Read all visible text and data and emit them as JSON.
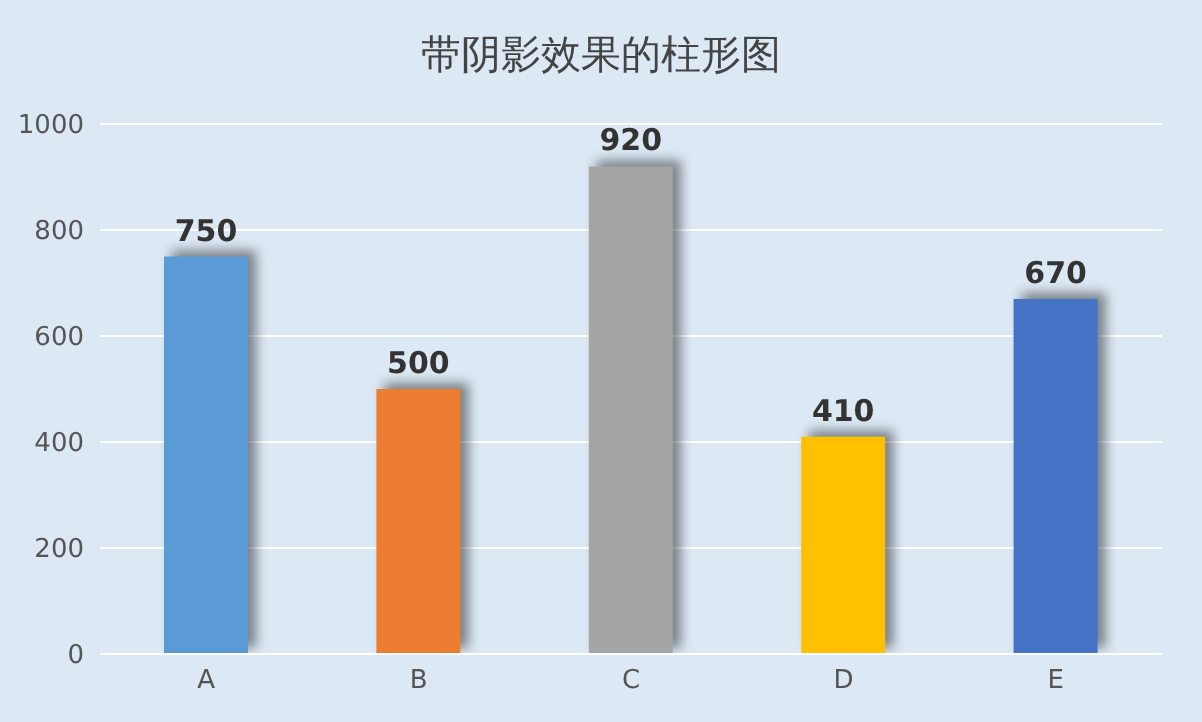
{
  "chart_data": {
    "type": "bar",
    "title": "带阴影效果的柱形图",
    "categories": [
      "A",
      "B",
      "C",
      "D",
      "E"
    ],
    "values": [
      750,
      500,
      920,
      410,
      670
    ],
    "colors": [
      "#5b9bd5",
      "#ed7d31",
      "#a5a5a5",
      "#ffc000",
      "#4472c4"
    ],
    "ylim": [
      0,
      1000
    ],
    "yticks": [
      0,
      200,
      400,
      600,
      800,
      1000
    ],
    "grid": "y",
    "data_labels": true
  }
}
